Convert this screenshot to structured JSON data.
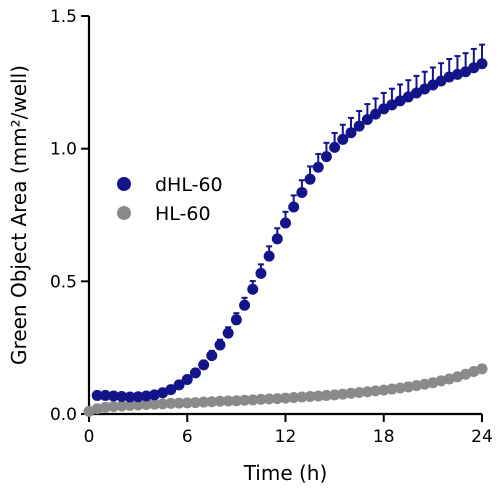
{
  "chart_data": {
    "type": "scatter",
    "xlabel": "Time (h)",
    "ylabel": "Green Object  Area (mm²/well)",
    "xlim": [
      0,
      24
    ],
    "ylim": [
      0,
      1.5
    ],
    "x_ticks": [
      0,
      6,
      12,
      18,
      24
    ],
    "x_tick_labels": [
      "0",
      "6",
      "12",
      "18",
      "24"
    ],
    "y_ticks": [
      0,
      0.5,
      1.0,
      1.5
    ],
    "y_tick_labels": [
      "0.0",
      "0.5",
      "1.0",
      "1.5"
    ],
    "legend_position": "left-middle",
    "grid": false,
    "series": [
      {
        "name": "dHL-60",
        "color": "#13138a",
        "error_bars": "upper",
        "x": [
          0.5,
          1,
          1.5,
          2,
          2.5,
          3,
          3.5,
          4,
          4.5,
          5,
          5.5,
          6,
          6.5,
          7,
          7.5,
          8,
          8.5,
          9,
          9.5,
          10,
          10.5,
          11,
          11.5,
          12,
          12.5,
          13,
          13.5,
          14,
          14.5,
          15,
          15.5,
          16,
          16.5,
          17,
          17.5,
          18,
          18.5,
          19,
          19.5,
          20,
          20.5,
          21,
          21.5,
          22,
          22.5,
          23,
          23.5,
          24
        ],
        "y": [
          0.07,
          0.07,
          0.068,
          0.066,
          0.064,
          0.065,
          0.068,
          0.072,
          0.08,
          0.092,
          0.11,
          0.13,
          0.155,
          0.185,
          0.22,
          0.26,
          0.305,
          0.355,
          0.41,
          0.47,
          0.53,
          0.595,
          0.66,
          0.72,
          0.78,
          0.835,
          0.885,
          0.93,
          0.97,
          1.005,
          1.035,
          1.06,
          1.085,
          1.11,
          1.13,
          1.15,
          1.165,
          1.18,
          1.195,
          1.21,
          1.225,
          1.24,
          1.255,
          1.27,
          1.28,
          1.29,
          1.305,
          1.32
        ],
        "error": [
          0.005,
          0.005,
          0.005,
          0.005,
          0.005,
          0.005,
          0.005,
          0.006,
          0.007,
          0.008,
          0.01,
          0.012,
          0.014,
          0.016,
          0.018,
          0.02,
          0.022,
          0.025,
          0.028,
          0.031,
          0.034,
          0.037,
          0.04,
          0.042,
          0.044,
          0.046,
          0.048,
          0.05,
          0.052,
          0.054,
          0.055,
          0.056,
          0.057,
          0.058,
          0.059,
          0.06,
          0.061,
          0.062,
          0.063,
          0.064,
          0.065,
          0.066,
          0.067,
          0.068,
          0.069,
          0.07,
          0.071,
          0.072
        ]
      },
      {
        "name": "HL-60",
        "color": "#8a8a8a",
        "error_bars": "none",
        "x": [
          0,
          0.5,
          1,
          1.5,
          2,
          2.5,
          3,
          3.5,
          4,
          4.5,
          5,
          5.5,
          6,
          6.5,
          7,
          7.5,
          8,
          8.5,
          9,
          9.5,
          10,
          10.5,
          11,
          11.5,
          12,
          12.5,
          13,
          13.5,
          14,
          14.5,
          15,
          15.5,
          16,
          16.5,
          17,
          17.5,
          18,
          18.5,
          19,
          19.5,
          20,
          20.5,
          21,
          21.5,
          22,
          22.5,
          23,
          23.5,
          24
        ],
        "y": [
          0.01,
          0.02,
          0.025,
          0.028,
          0.03,
          0.032,
          0.034,
          0.036,
          0.037,
          0.038,
          0.04,
          0.041,
          0.042,
          0.043,
          0.045,
          0.046,
          0.048,
          0.049,
          0.05,
          0.052,
          0.053,
          0.055,
          0.057,
          0.058,
          0.06,
          0.062,
          0.064,
          0.066,
          0.068,
          0.07,
          0.072,
          0.075,
          0.078,
          0.081,
          0.084,
          0.087,
          0.09,
          0.094,
          0.098,
          0.102,
          0.107,
          0.112,
          0.118,
          0.125,
          0.132,
          0.14,
          0.15,
          0.16,
          0.17
        ]
      }
    ]
  }
}
